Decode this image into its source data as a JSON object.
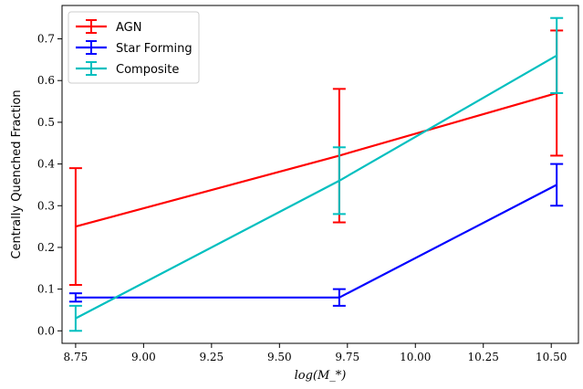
{
  "chart_data": {
    "type": "line",
    "xlabel": "log(M_*)",
    "ylabel": "Centrally Quenched Fraction",
    "xlim": [
      8.7,
      10.6
    ],
    "ylim": [
      -0.03,
      0.78
    ],
    "xticks": [
      "8.75",
      "9.00",
      "9.25",
      "9.50",
      "9.75",
      "10.00",
      "10.25",
      "10.50"
    ],
    "yticks": [
      "0.0",
      "0.1",
      "0.2",
      "0.3",
      "0.4",
      "0.5",
      "0.6",
      "0.7"
    ],
    "grid": false,
    "legend_position": "top-left",
    "series": [
      {
        "name": "AGN",
        "color": "#ff0000",
        "x": [
          8.75,
          9.72,
          10.52
        ],
        "y": [
          0.25,
          0.42,
          0.57
        ],
        "err_low": [
          0.11,
          0.26,
          0.42
        ],
        "err_high": [
          0.39,
          0.58,
          0.72
        ]
      },
      {
        "name": "Star Forming",
        "color": "#0000ff",
        "x": [
          8.75,
          9.72,
          10.52
        ],
        "y": [
          0.08,
          0.08,
          0.35
        ],
        "err_low": [
          0.07,
          0.06,
          0.3
        ],
        "err_high": [
          0.09,
          0.1,
          0.4
        ]
      },
      {
        "name": "Composite",
        "color": "#00bfbf",
        "x": [
          8.75,
          9.72,
          10.52
        ],
        "y": [
          0.03,
          0.36,
          0.66
        ],
        "err_low": [
          0.0,
          0.28,
          0.57
        ],
        "err_high": [
          0.06,
          0.44,
          0.75
        ]
      }
    ]
  }
}
